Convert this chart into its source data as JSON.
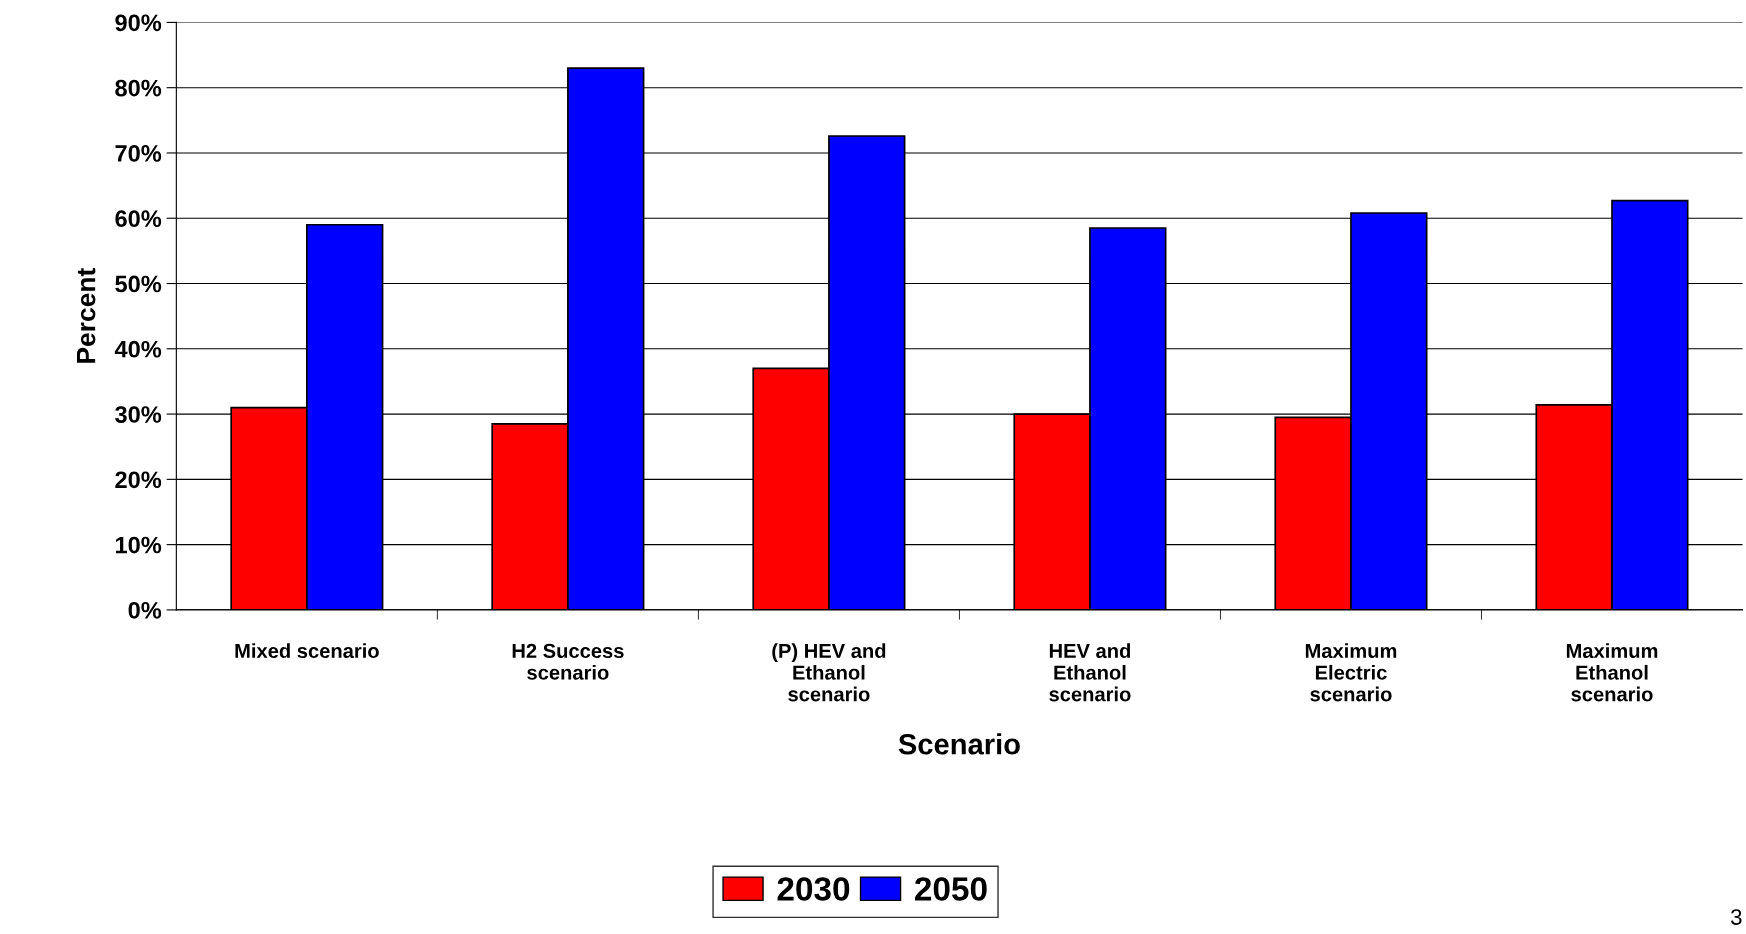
{
  "chart_data": {
    "type": "bar",
    "xlabel": "Scenario",
    "ylabel": "Percent",
    "categories": [
      "Mixed scenario",
      "H2 Success\nscenario",
      "(P) HEV and\nEthanol\nscenario",
      "HEV and\nEthanol\nscenario",
      "Maximum\nElectric\nscenario",
      "Maximum\nEthanol\nscenario"
    ],
    "series": [
      {
        "name": "2030",
        "color": "#ff0000",
        "values": [
          31,
          28.5,
          37,
          30,
          29.5,
          31.4
        ]
      },
      {
        "name": "2050",
        "color": "#0000ff",
        "values": [
          59,
          83,
          72.6,
          58.5,
          60.8,
          62.7
        ]
      }
    ],
    "ylim": [
      0,
      90
    ],
    "yticks": [
      {
        "value": 0,
        "label": "0%"
      },
      {
        "value": 10,
        "label": "10%"
      },
      {
        "value": 20,
        "label": "20%"
      },
      {
        "value": 30,
        "label": "30%"
      },
      {
        "value": 40,
        "label": "40%"
      },
      {
        "value": 50,
        "label": "50%"
      },
      {
        "value": 60,
        "label": "60%"
      },
      {
        "value": 70,
        "label": "70%"
      },
      {
        "value": 80,
        "label": "80%"
      },
      {
        "value": 90,
        "label": "90%"
      }
    ],
    "grid": "y",
    "legend": "bottom",
    "annotations": [
      "3"
    ]
  }
}
